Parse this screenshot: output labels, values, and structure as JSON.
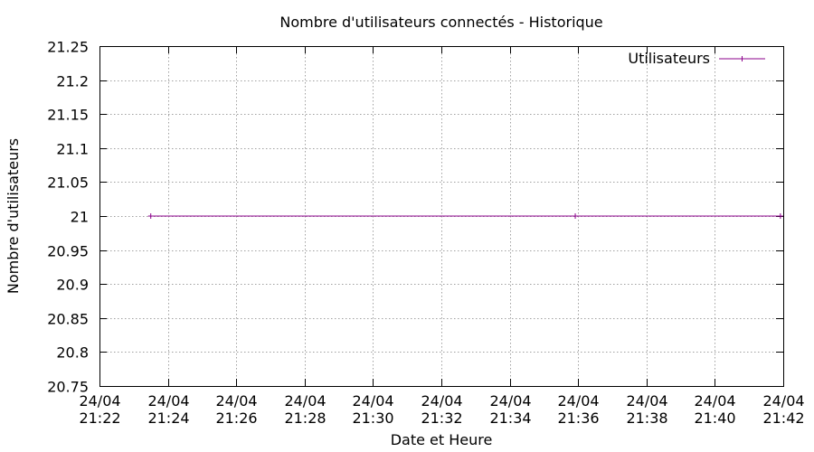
{
  "chart_data": {
    "type": "line",
    "title": "Nombre d'utilisateurs connectés - Historique",
    "xlabel": "Date et Heure",
    "ylabel": "Nombre d'utilisateurs",
    "x_axis": {
      "range": [
        "24/04 21:22",
        "24/04 21:42"
      ],
      "ticks": [
        {
          "date": "24/04",
          "time": "21:22"
        },
        {
          "date": "24/04",
          "time": "21:24"
        },
        {
          "date": "24/04",
          "time": "21:26"
        },
        {
          "date": "24/04",
          "time": "21:28"
        },
        {
          "date": "24/04",
          "time": "21:30"
        },
        {
          "date": "24/04",
          "time": "21:32"
        },
        {
          "date": "24/04",
          "time": "21:34"
        },
        {
          "date": "24/04",
          "time": "21:36"
        },
        {
          "date": "24/04",
          "time": "21:38"
        },
        {
          "date": "24/04",
          "time": "21:40"
        },
        {
          "date": "24/04",
          "time": "21:42"
        }
      ]
    },
    "y_axis": {
      "range": [
        20.75,
        21.25
      ],
      "ticks": [
        "21.25",
        "21.2",
        "21.15",
        "21.1",
        "21.05",
        "21",
        "20.95",
        "20.9",
        "20.85",
        "20.8",
        "20.75"
      ]
    },
    "grid": true,
    "legend": {
      "placement": "top-right"
    },
    "series": [
      {
        "name": "Utilisateurs",
        "color": "#8b008b",
        "points": [
          {
            "x": "24/04 21:23:30",
            "y": 21
          },
          {
            "x": "24/04 21:35:55",
            "y": 21
          },
          {
            "x": "24/04 21:41:55",
            "y": 21
          }
        ]
      }
    ]
  }
}
